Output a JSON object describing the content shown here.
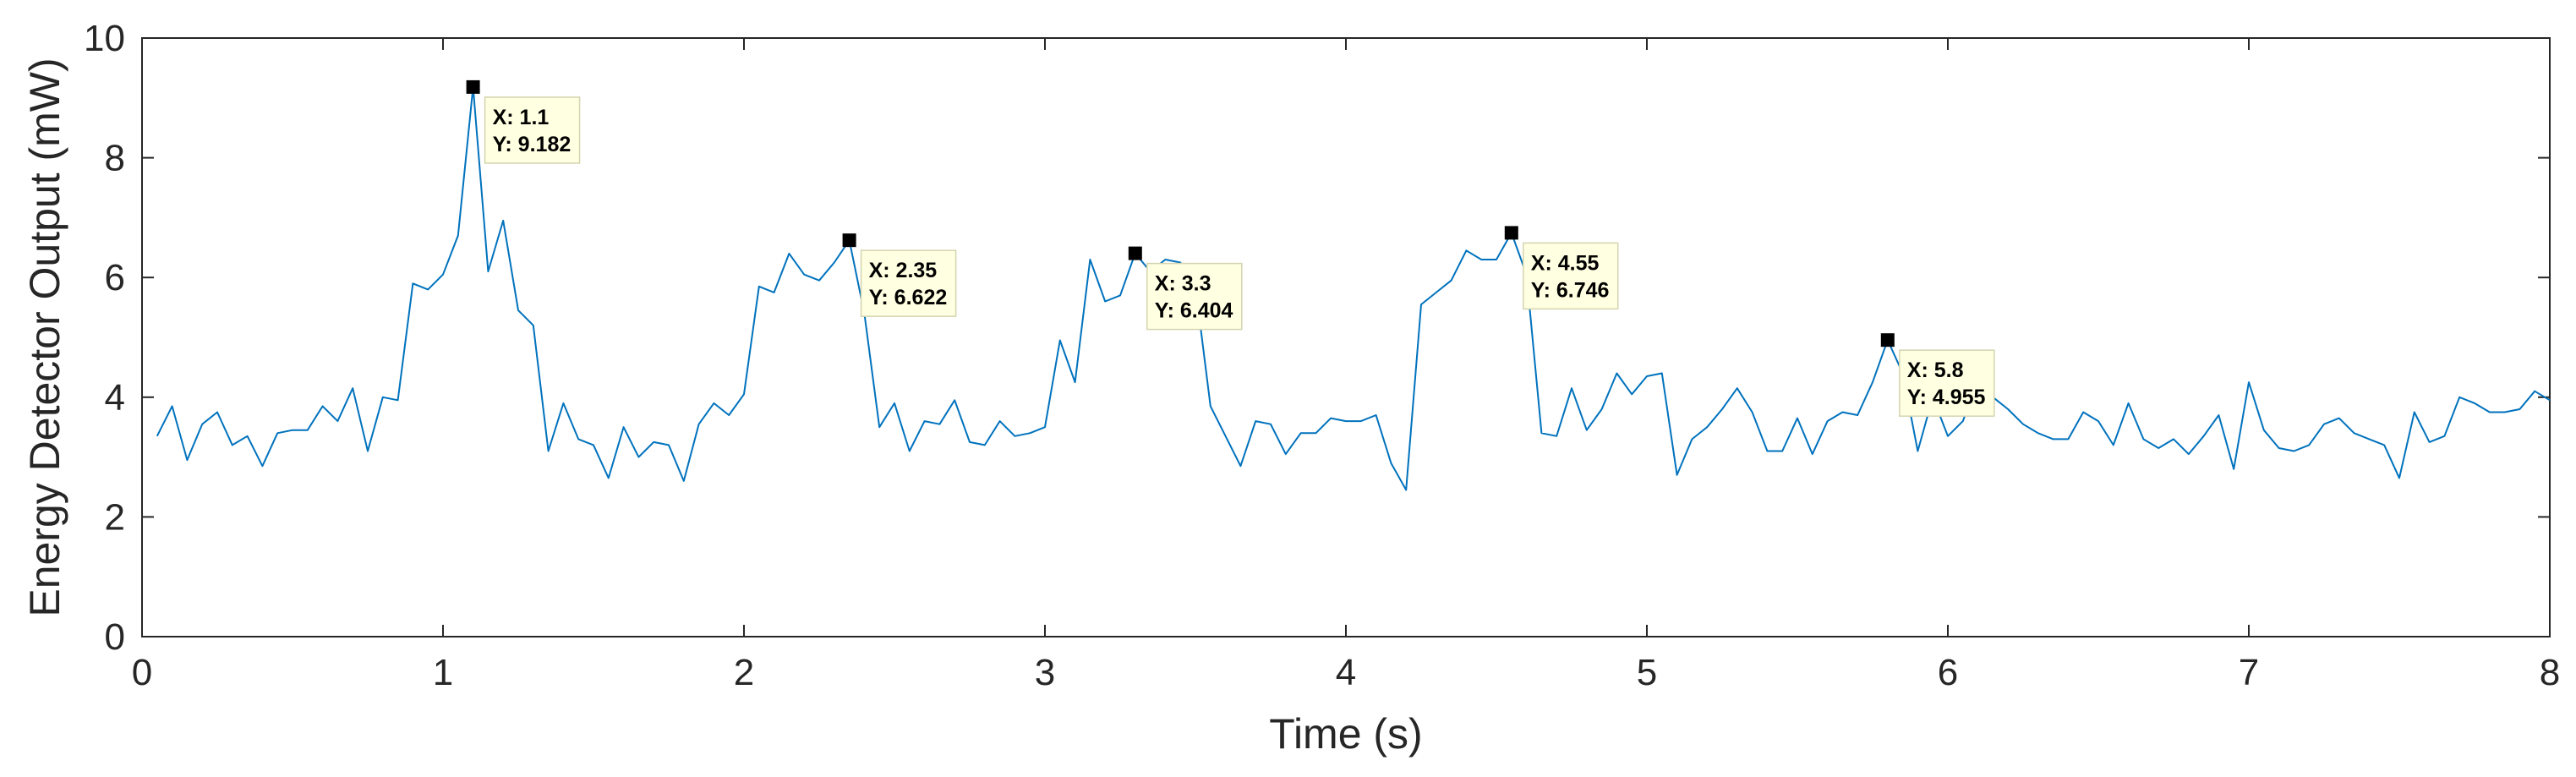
{
  "chart_data": {
    "type": "line",
    "title": "",
    "xlabel": "Time (s)",
    "ylabel": "Energy Detector Output (mW)",
    "xlim": [
      0,
      8
    ],
    "ylim": [
      0,
      10
    ],
    "xticks": [
      "0",
      "1",
      "2",
      "3",
      "4",
      "5",
      "6",
      "7",
      "8"
    ],
    "yticks": [
      "0",
      "2",
      "4",
      "6",
      "8",
      "10"
    ],
    "grid": true,
    "line_color": "#0072BD",
    "series": [
      {
        "name": "",
        "x": [
          0.05,
          0.1,
          0.15,
          0.2,
          0.25,
          0.3,
          0.35,
          0.4,
          0.45,
          0.5,
          0.55,
          0.6,
          0.65,
          0.7,
          0.75,
          0.8,
          0.85,
          0.9,
          0.95,
          1.0,
          1.05,
          1.1,
          1.15,
          1.2,
          1.25,
          1.3,
          1.35,
          1.4,
          1.45,
          1.5,
          1.55,
          1.6,
          1.65,
          1.7,
          1.75,
          1.8,
          1.85,
          1.9,
          1.95,
          2.0,
          2.05,
          2.1,
          2.15,
          2.2,
          2.25,
          2.3,
          2.35,
          2.4,
          2.45,
          2.5,
          2.55,
          2.6,
          2.65,
          2.7,
          2.75,
          2.8,
          2.85,
          2.9,
          2.95,
          3.0,
          3.05,
          3.1,
          3.15,
          3.2,
          3.25,
          3.3,
          3.35,
          3.4,
          3.45,
          3.5,
          3.55,
          3.6,
          3.65,
          3.7,
          3.75,
          3.8,
          3.85,
          3.9,
          3.95,
          4.0,
          4.05,
          4.1,
          4.15,
          4.2,
          4.25,
          4.3,
          4.35,
          4.4,
          4.45,
          4.5,
          4.55,
          4.6,
          4.65,
          4.7,
          4.75,
          4.8,
          4.85,
          4.9,
          4.95,
          5.0,
          5.05,
          5.1,
          5.15,
          5.2,
          5.25,
          5.3,
          5.35,
          5.4,
          5.45,
          5.5,
          5.55,
          5.6,
          5.65,
          5.7,
          5.75,
          5.8,
          5.85,
          5.9,
          5.95,
          6.0,
          6.05,
          6.1,
          6.15,
          6.2,
          6.25,
          6.3,
          6.35,
          6.4,
          6.45,
          6.5,
          6.55,
          6.6,
          6.65,
          6.7,
          6.75,
          6.8,
          6.85,
          6.9,
          6.95,
          7.0,
          7.05,
          7.1,
          7.15,
          7.2,
          7.25,
          7.3,
          7.35,
          7.4,
          7.45,
          7.5,
          7.55,
          7.6,
          7.65,
          7.7,
          7.75,
          7.8,
          7.85,
          7.9,
          7.95,
          8.0
        ],
        "y": [
          3.35,
          3.85,
          2.95,
          3.55,
          3.75,
          3.2,
          3.35,
          2.85,
          3.4,
          3.45,
          3.45,
          3.85,
          3.6,
          4.15,
          3.1,
          4.0,
          3.95,
          5.9,
          5.8,
          6.05,
          6.7,
          9.182,
          6.1,
          6.95,
          5.45,
          5.2,
          3.1,
          3.9,
          3.3,
          3.2,
          2.65,
          3.5,
          3.0,
          3.25,
          3.2,
          2.6,
          3.55,
          3.9,
          3.7,
          4.05,
          5.85,
          5.75,
          6.4,
          6.05,
          5.95,
          6.25,
          6.622,
          5.4,
          3.5,
          3.9,
          3.1,
          3.6,
          3.55,
          3.95,
          3.25,
          3.2,
          3.6,
          3.35,
          3.4,
          3.5,
          4.95,
          4.25,
          6.3,
          5.6,
          5.7,
          6.404,
          6.1,
          6.3,
          6.25,
          5.85,
          3.85,
          3.35,
          2.85,
          3.6,
          3.55,
          3.05,
          3.4,
          3.4,
          3.65,
          3.6,
          3.6,
          3.7,
          2.9,
          2.45,
          5.55,
          5.75,
          5.95,
          6.45,
          6.3,
          6.3,
          6.746,
          6.05,
          3.4,
          3.35,
          4.15,
          3.45,
          3.8,
          4.4,
          4.05,
          4.35,
          4.4,
          2.7,
          3.3,
          3.5,
          3.8,
          4.15,
          3.75,
          3.1,
          3.1,
          3.65,
          3.05,
          3.6,
          3.75,
          3.7,
          4.25,
          4.955,
          4.4,
          3.1,
          4.0,
          3.35,
          3.6,
          4.3,
          4.0,
          3.8,
          3.55,
          3.4,
          3.3,
          3.3,
          3.75,
          3.6,
          3.2,
          3.9,
          3.3,
          3.15,
          3.3,
          3.05,
          3.35,
          3.7,
          2.8,
          4.25,
          3.45,
          3.15,
          3.1,
          3.2,
          3.55,
          3.65,
          3.4,
          3.3,
          3.2,
          2.65,
          3.75,
          3.25,
          3.35,
          4.0,
          3.9,
          3.75,
          3.75,
          3.8,
          4.1,
          3.95
        ]
      }
    ],
    "annotations": [
      {
        "x": 1.1,
        "y": 9.182,
        "label_x": "X: 1.1",
        "label_y": "Y: 9.182"
      },
      {
        "x": 2.35,
        "y": 6.622,
        "label_x": "X: 2.35",
        "label_y": "Y: 6.622"
      },
      {
        "x": 3.3,
        "y": 6.404,
        "label_x": "X: 3.3",
        "label_y": "Y: 6.404"
      },
      {
        "x": 4.55,
        "y": 6.746,
        "label_x": "X: 4.55",
        "label_y": "Y: 6.746"
      },
      {
        "x": 5.8,
        "y": 4.955,
        "label_x": "X: 5.8",
        "label_y": "Y: 4.955"
      }
    ]
  }
}
